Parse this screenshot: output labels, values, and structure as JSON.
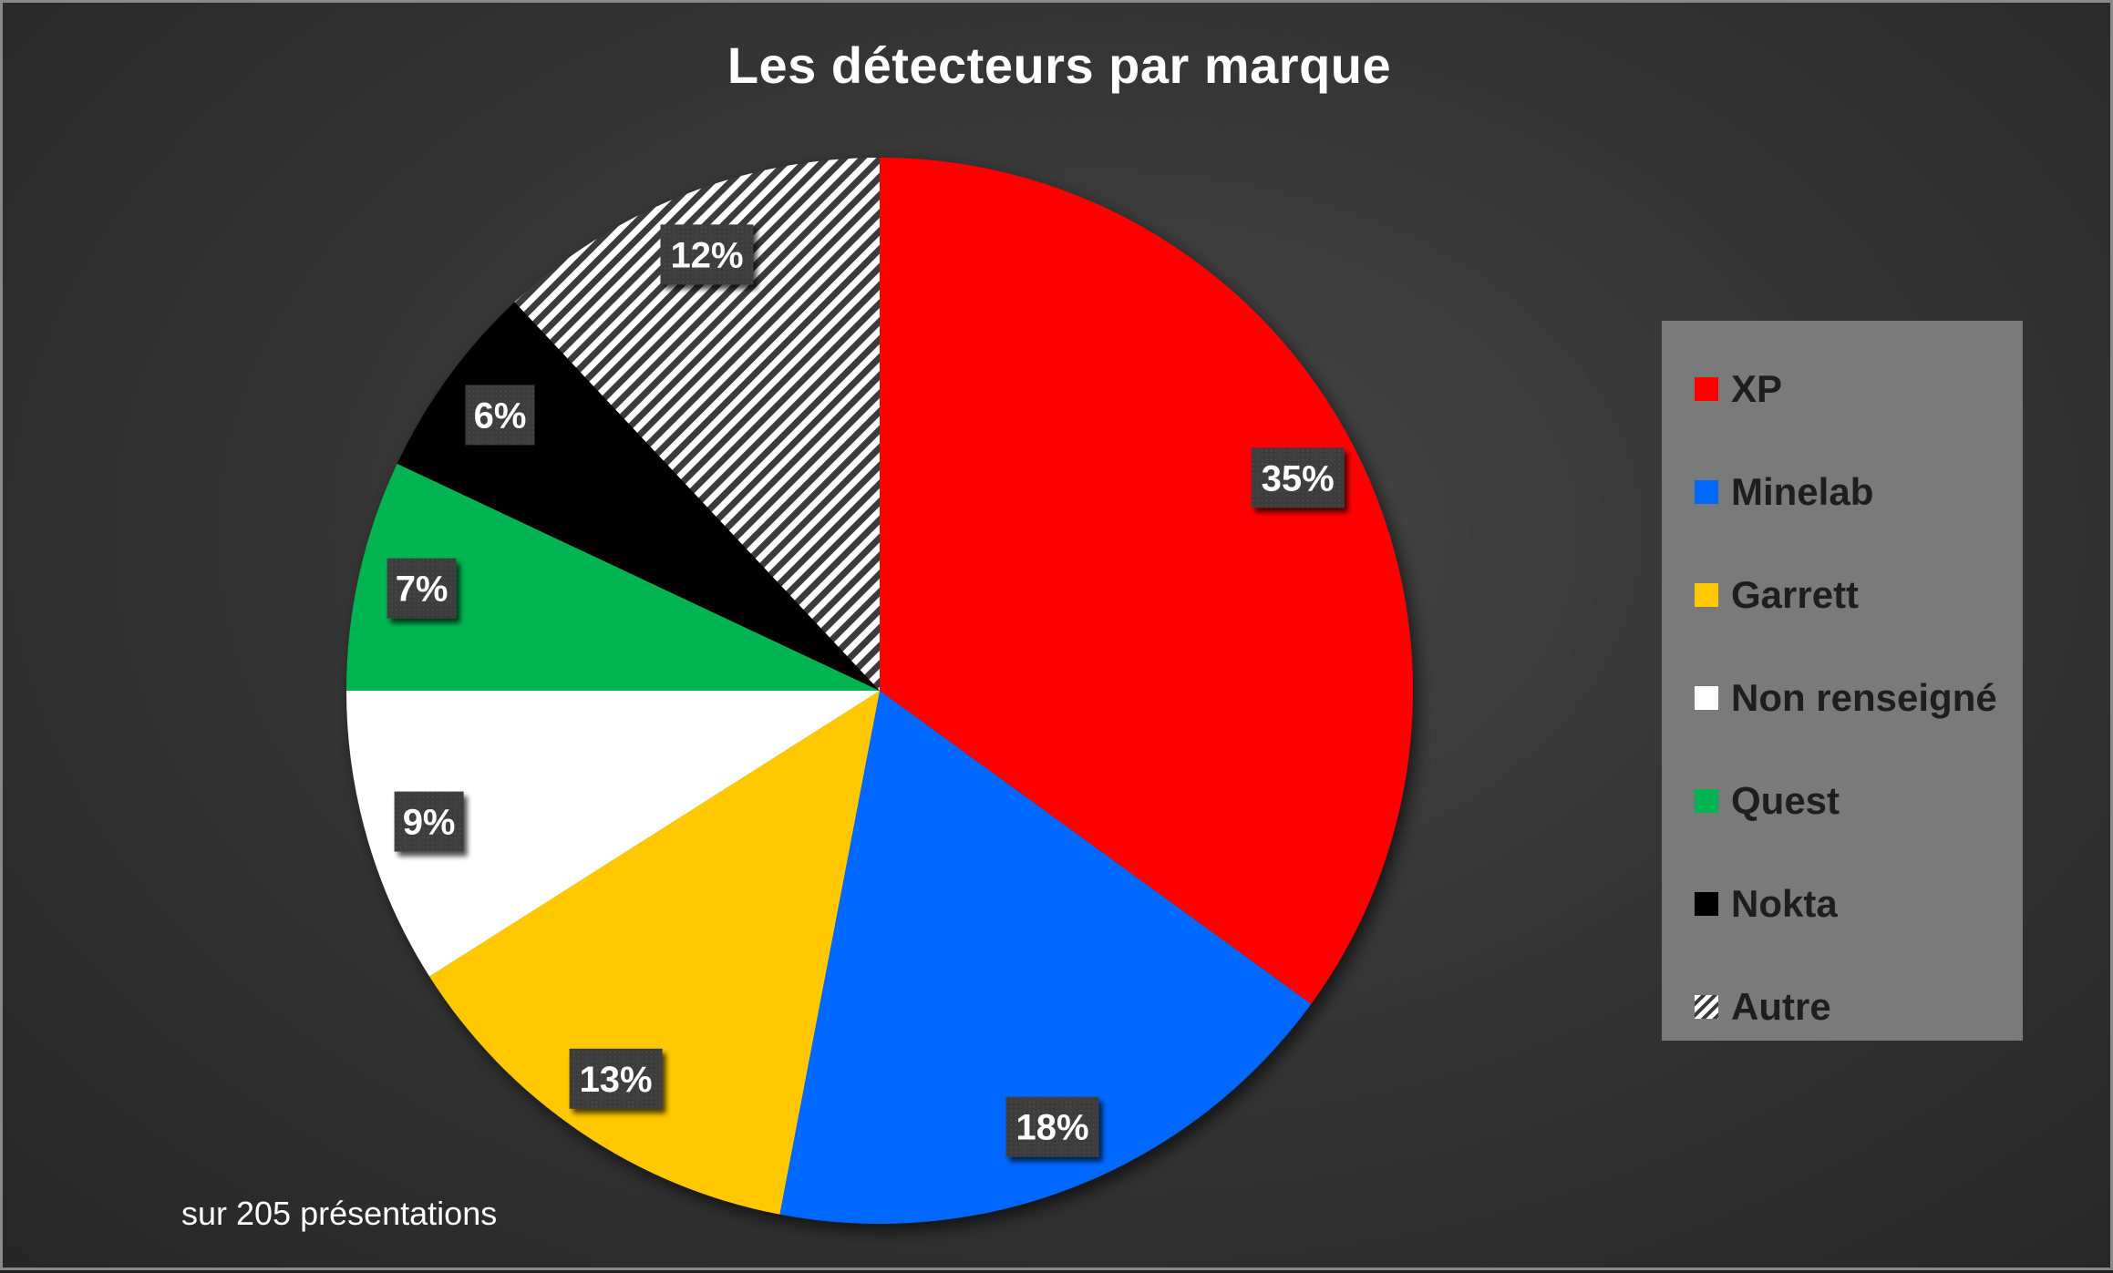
{
  "chart_data": {
    "type": "pie",
    "title": "Les détecteurs par marque",
    "footnote": "sur 205 présentations",
    "legend_position": "right",
    "slices": [
      {
        "label": "XP",
        "value": 35,
        "display": "35%",
        "color": "#ff0000"
      },
      {
        "label": "Minelab",
        "value": 18,
        "display": "18%",
        "color": "#0068ff"
      },
      {
        "label": "Garrett",
        "value": 13,
        "display": "13%",
        "color": "#ffc800"
      },
      {
        "label": "Non renseigné",
        "value": 9,
        "display": "9%",
        "color": "#ffffff"
      },
      {
        "label": "Quest",
        "value": 7,
        "display": "7%",
        "color": "#00b451"
      },
      {
        "label": "Nokta",
        "value": 6,
        "display": "6%",
        "color": "#000000"
      },
      {
        "label": "Autre",
        "value": 12,
        "display": "12%",
        "color": "hatched",
        "pattern": "diagonal-stripes"
      }
    ]
  }
}
